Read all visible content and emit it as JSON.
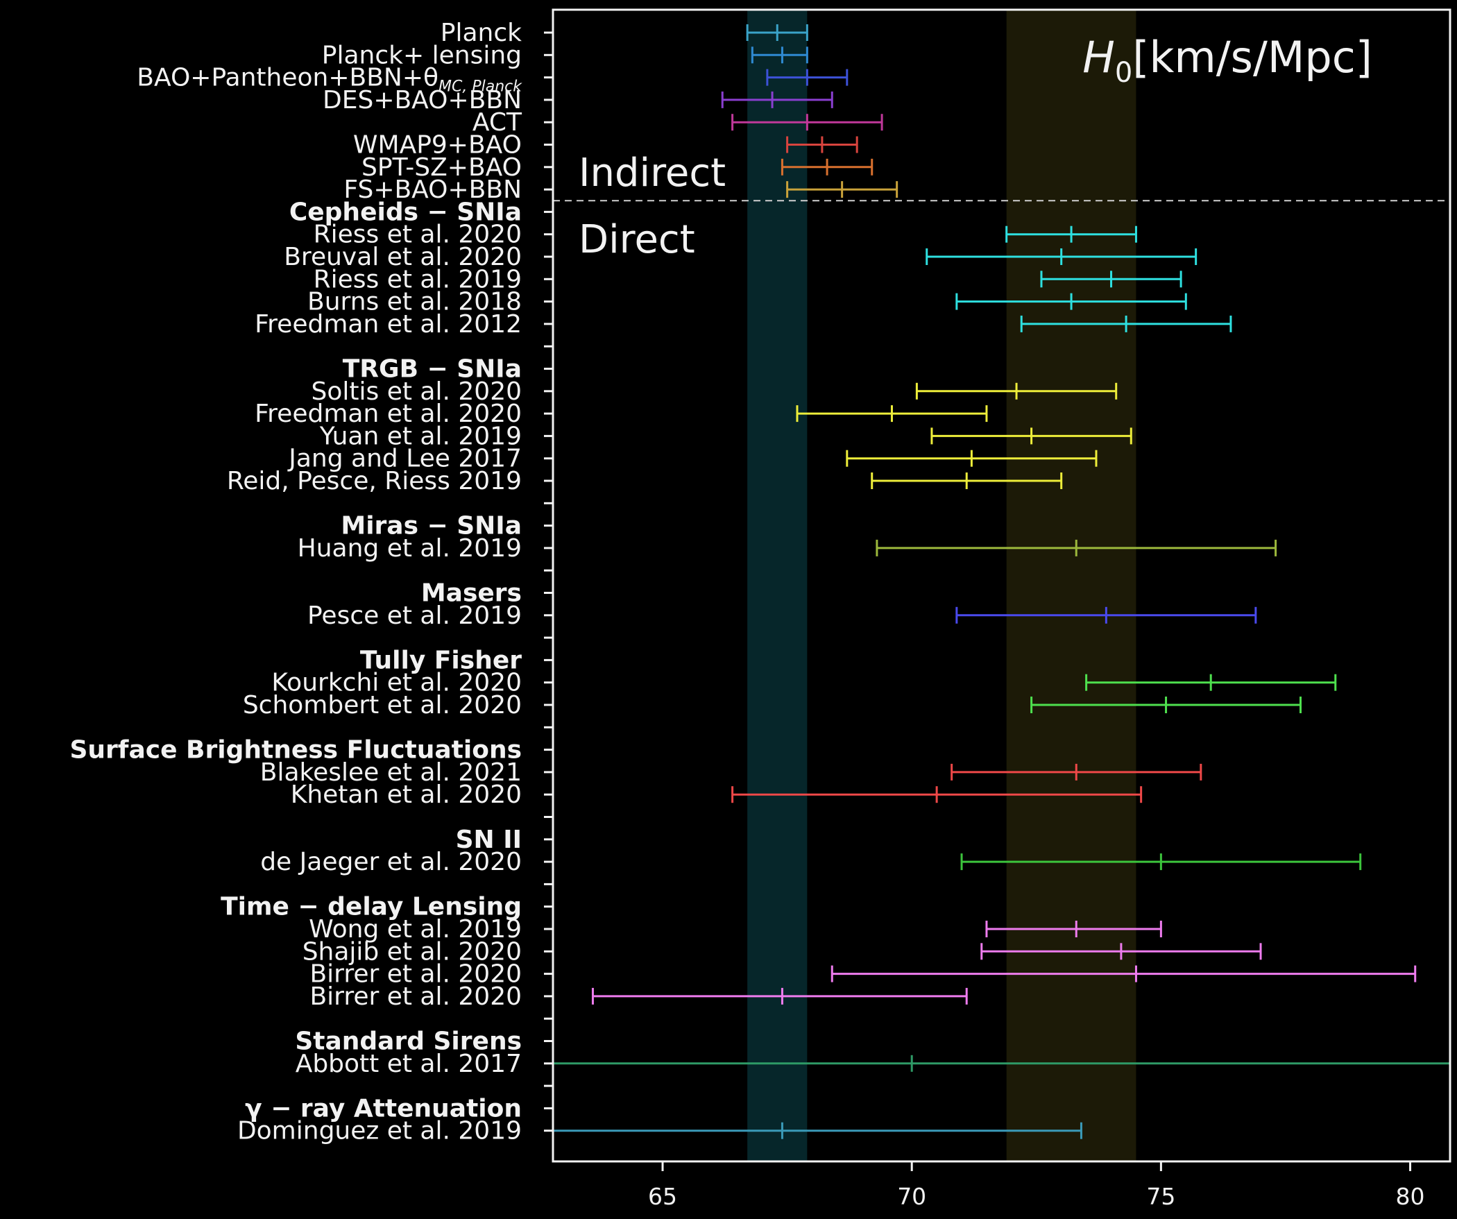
{
  "chart_data": {
    "type": "errorbar",
    "title_prefix": "H",
    "title_sub": "0",
    "title_suffix": "[km/s/Mpc]",
    "xlim": [
      62.8,
      80.8
    ],
    "xticks": [
      65,
      70,
      75,
      80
    ],
    "grid": false,
    "region_labels": {
      "indirect": "Indirect",
      "direct": "Direct"
    },
    "bands": [
      {
        "from": 66.7,
        "to": 67.9,
        "color": "#06262a"
      },
      {
        "from": 71.9,
        "to": 74.5,
        "color": "#1c1a07"
      }
    ],
    "rows": [
      {
        "label": "Planck",
        "center": 67.3,
        "lo": 66.7,
        "hi": 67.9,
        "color": "#3aa3c8"
      },
      {
        "label": "Planck+ lensing",
        "center": 67.4,
        "lo": 66.8,
        "hi": 67.9,
        "color": "#2f8ad2"
      },
      {
        "label": "BAO+Pantheon+BBN+θ",
        "label_sub": "MC, Planck",
        "center": 67.9,
        "lo": 67.1,
        "hi": 68.7,
        "color": "#3d52d8"
      },
      {
        "label": "DES+BAO+BBN",
        "center": 67.2,
        "lo": 66.2,
        "hi": 68.4,
        "color": "#8a3fd0"
      },
      {
        "label": "ACT",
        "center": 67.9,
        "lo": 66.4,
        "hi": 69.4,
        "color": "#c0389a"
      },
      {
        "label": "WMAP9+BAO",
        "center": 68.2,
        "lo": 67.5,
        "hi": 68.9,
        "color": "#d8443e"
      },
      {
        "label": "SPT-SZ+BAO",
        "center": 68.3,
        "lo": 67.4,
        "hi": 69.2,
        "color": "#d8702e"
      },
      {
        "label": "FS+BAO+BBN",
        "center": 68.6,
        "lo": 67.5,
        "hi": 69.7,
        "color": "#c9a23a"
      },
      {
        "label": "Cepheids − SNIa",
        "header": true,
        "divider": true
      },
      {
        "label": "Riess et al. 2020",
        "center": 73.2,
        "lo": 71.9,
        "hi": 74.5,
        "color": "#2ee0e0"
      },
      {
        "label": "Breuval et al. 2020",
        "center": 73.0,
        "lo": 70.3,
        "hi": 75.7,
        "color": "#2ee0e0"
      },
      {
        "label": "Riess et al. 2019",
        "center": 74.0,
        "lo": 72.6,
        "hi": 75.4,
        "color": "#2ee0e0"
      },
      {
        "label": "Burns et al. 2018",
        "center": 73.2,
        "lo": 70.9,
        "hi": 75.5,
        "color": "#2ee0e0"
      },
      {
        "label": "Freedman et al. 2012",
        "center": 74.3,
        "lo": 72.2,
        "hi": 76.4,
        "color": "#2ee0e0"
      },
      {
        "label": "",
        "spacer": true
      },
      {
        "label": "TRGB − SNIa",
        "header": true
      },
      {
        "label": "Soltis et al. 2020",
        "center": 72.1,
        "lo": 70.1,
        "hi": 74.1,
        "color": "#eded3a"
      },
      {
        "label": "Freedman et al. 2020",
        "center": 69.6,
        "lo": 67.7,
        "hi": 71.5,
        "color": "#eded3a"
      },
      {
        "label": "Yuan et al. 2019",
        "center": 72.4,
        "lo": 70.4,
        "hi": 74.4,
        "color": "#eded3a"
      },
      {
        "label": "Jang and Lee 2017",
        "center": 71.2,
        "lo": 68.7,
        "hi": 73.7,
        "color": "#eded3a"
      },
      {
        "label": "Reid, Pesce, Riess 2019",
        "center": 71.1,
        "lo": 69.2,
        "hi": 73.0,
        "color": "#eded3a"
      },
      {
        "label": "",
        "spacer": true
      },
      {
        "label": "Miras − SNIa",
        "header": true
      },
      {
        "label": "Huang et al. 2019",
        "center": 73.3,
        "lo": 69.3,
        "hi": 77.3,
        "color": "#9cb83c"
      },
      {
        "label": "",
        "spacer": true
      },
      {
        "label": "Masers",
        "header": true
      },
      {
        "label": "Pesce et al. 2019",
        "center": 73.9,
        "lo": 70.9,
        "hi": 76.9,
        "color": "#4a4aee"
      },
      {
        "label": "",
        "spacer": true
      },
      {
        "label": "Tully Fisher",
        "header": true
      },
      {
        "label": "Kourkchi et al. 2020",
        "center": 76.0,
        "lo": 73.5,
        "hi": 78.5,
        "color": "#4ee04e"
      },
      {
        "label": "Schombert et al. 2020",
        "center": 75.1,
        "lo": 72.4,
        "hi": 77.8,
        "color": "#4ee04e"
      },
      {
        "label": "",
        "spacer": true
      },
      {
        "label": "Surface Brightness Fluctuations",
        "header": true
      },
      {
        "label": "Blakeslee et al. 2021",
        "center": 73.3,
        "lo": 70.8,
        "hi": 75.8,
        "color": "#ee4848"
      },
      {
        "label": "Khetan et al. 2020",
        "center": 70.5,
        "lo": 66.4,
        "hi": 74.6,
        "color": "#ee4848"
      },
      {
        "label": "",
        "spacer": true
      },
      {
        "label": "SN II",
        "header": true
      },
      {
        "label": "de Jaeger et al. 2020",
        "center": 75.0,
        "lo": 71.0,
        "hi": 79.0,
        "color": "#3cc43c"
      },
      {
        "label": "",
        "spacer": true
      },
      {
        "label": "Time − delay Lensing",
        "header": true
      },
      {
        "label": "Wong et al. 2019",
        "center": 73.3,
        "lo": 71.5,
        "hi": 75.0,
        "color": "#ee7cee"
      },
      {
        "label": "Shajib et al. 2020",
        "center": 74.2,
        "lo": 71.4,
        "hi": 77.0,
        "color": "#ee7cee"
      },
      {
        "label": "Birrer et al. 2020",
        "center": 74.5,
        "lo": 68.4,
        "hi": 80.1,
        "color": "#ee7cee"
      },
      {
        "label": "Birrer et al. 2020",
        "center": 67.4,
        "lo": 63.6,
        "hi": 71.1,
        "color": "#ee7cee"
      },
      {
        "label": "",
        "spacer": true
      },
      {
        "label": "Standard Sirens",
        "header": true
      },
      {
        "label": "Abbott et al. 2017",
        "center": 70.0,
        "lo": 62.8,
        "hi": 80.8,
        "color": "#2e9a66"
      },
      {
        "label": "",
        "spacer": true
      },
      {
        "label": "γ − ray Attenuation",
        "header": true
      },
      {
        "label": "Dominguez et al. 2019",
        "center": 67.4,
        "lo": 62.8,
        "hi": 73.4,
        "color": "#3a9ab8"
      }
    ]
  }
}
